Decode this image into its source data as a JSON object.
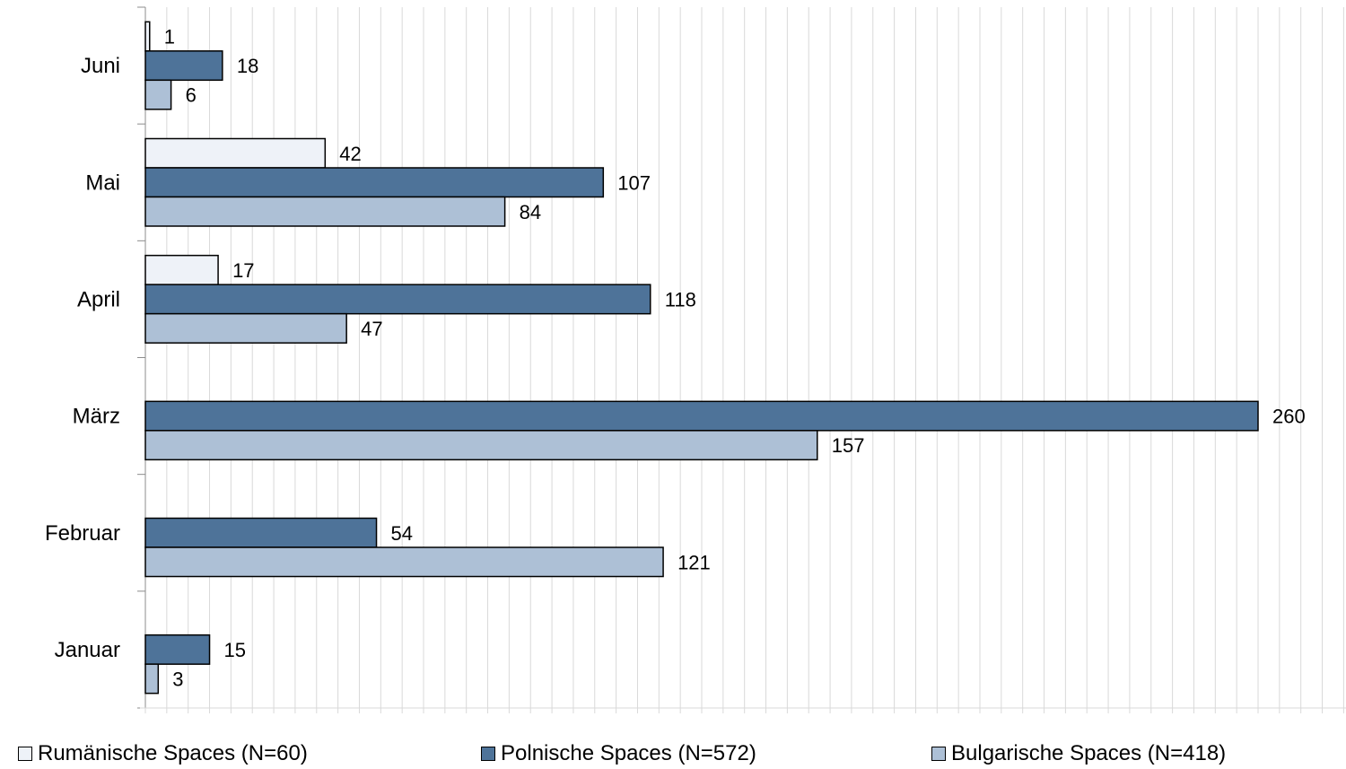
{
  "chart_data": {
    "type": "bar",
    "orientation": "horizontal",
    "categories": [
      "Juni",
      "Mai",
      "April",
      "März",
      "Februar",
      "Januar"
    ],
    "series": [
      {
        "name": "Rumänische Spaces (N=60)",
        "color": "#eef2f8",
        "values": [
          1,
          42,
          17,
          null,
          null,
          null
        ]
      },
      {
        "name": "Polnische Spaces (N=572)",
        "color": "#4e7399",
        "values": [
          18,
          107,
          118,
          260,
          54,
          15
        ]
      },
      {
        "name": "Bulgarische Spaces (N=418)",
        "color": "#adc0d6",
        "values": [
          6,
          84,
          47,
          157,
          121,
          3
        ]
      }
    ],
    "xlim": [
      0,
      275
    ],
    "grid": true,
    "legend_position": "bottom"
  }
}
